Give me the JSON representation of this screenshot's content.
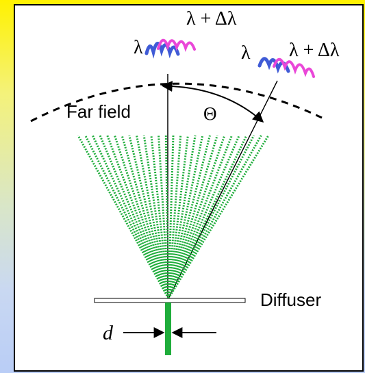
{
  "labels": {
    "far_field": "Far field",
    "theta": "Θ",
    "diffuser": "Diffuser",
    "d": "d",
    "lambda_left": "λ",
    "lambda_plus_left": "λ + Δλ",
    "lambda_right": "λ",
    "lambda_plus_right": "λ + Δλ"
  },
  "colors": {
    "beam": "#1fad3b",
    "wave_lambda": "#3f5bd6",
    "wave_plus": "#ea47d8",
    "arc": "#000000",
    "background_top": "#fff200",
    "background_bottom": "#b9cdf6"
  }
}
